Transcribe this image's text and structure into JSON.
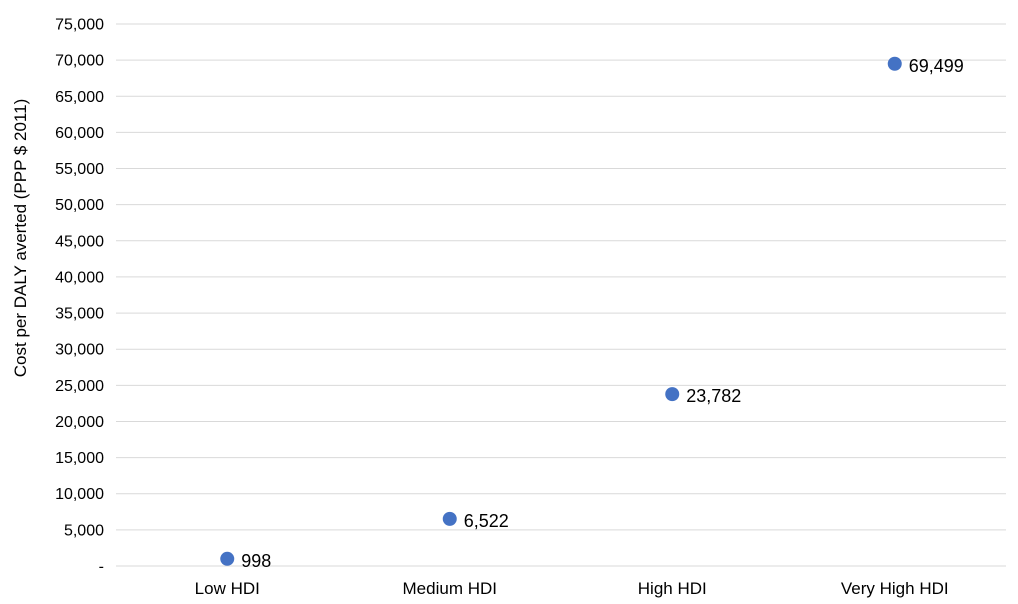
{
  "chart_data": {
    "type": "scatter",
    "title": "",
    "xlabel": "",
    "ylabel": "Cost per DALY averted (PPP $ 2011)",
    "categories": [
      "Low HDI",
      "Medium HDI",
      "High HDI",
      "Very High HDI"
    ],
    "values": [
      998,
      6522,
      23782,
      69499
    ],
    "data_labels": [
      "998",
      "6,522",
      "23,782",
      "69,499"
    ],
    "ylim": [
      0,
      75000
    ],
    "yticks": [
      0,
      5000,
      10000,
      15000,
      20000,
      25000,
      30000,
      35000,
      40000,
      45000,
      50000,
      55000,
      60000,
      65000,
      70000,
      75000
    ],
    "ytick_labels": [
      "-",
      "5,000",
      "10,000",
      "15,000",
      "20,000",
      "25,000",
      "30,000",
      "35,000",
      "40,000",
      "45,000",
      "50,000",
      "55,000",
      "60,000",
      "65,000",
      "70,000",
      "75,000"
    ],
    "grid": true,
    "marker_color": "#4472C4",
    "grid_color": "#d9d9d9"
  }
}
